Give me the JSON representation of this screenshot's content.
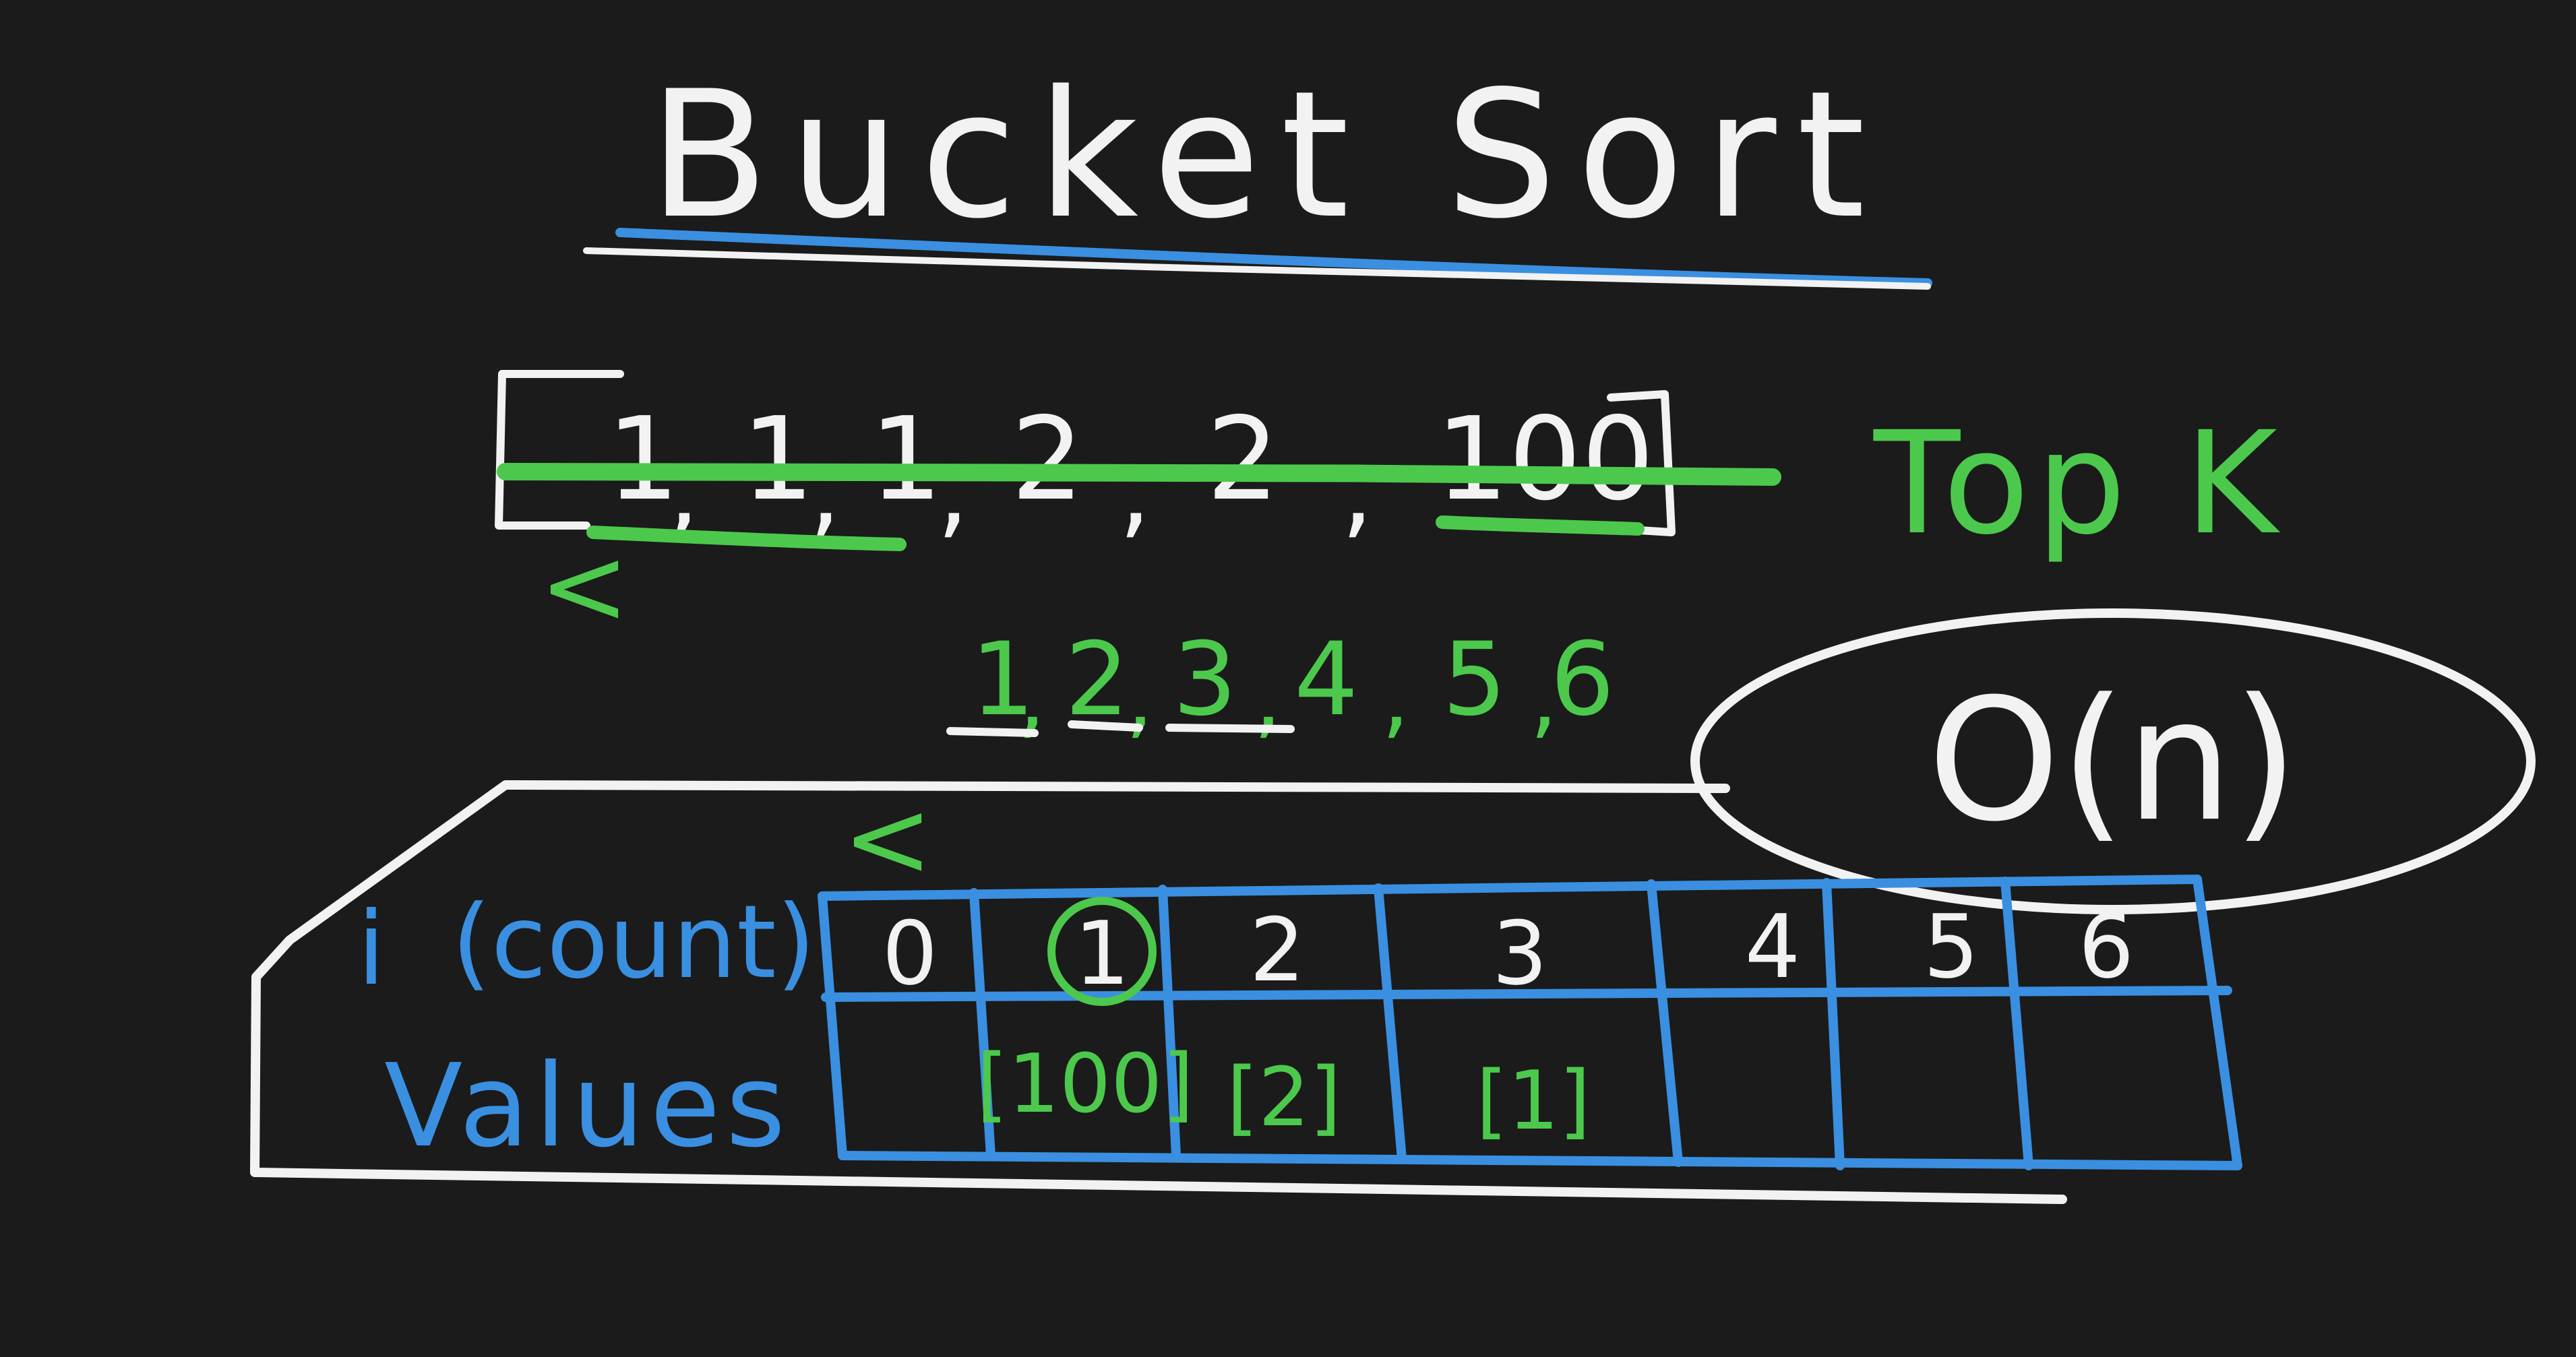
{
  "title": "Bucket Sort",
  "array": {
    "open_bracket": "[",
    "items": [
      "1",
      ",",
      "1",
      ",",
      "1",
      ",",
      "2",
      ",",
      "2",
      ",",
      "100"
    ],
    "close_bracket": "]",
    "less_than": "<"
  },
  "side_label": "Top K",
  "count_sequence": [
    "1",
    ",",
    "2",
    ",",
    "3",
    ",",
    "4",
    ",",
    "5",
    ",",
    "6"
  ],
  "complexity": "O(n)",
  "table": {
    "arrow": "<",
    "index_label": "i",
    "count_label": "(count)",
    "values_label": "Values",
    "indices": [
      "0",
      "1",
      "2",
      "3",
      "4",
      "5",
      "6"
    ],
    "values": [
      "",
      "[100]",
      "[2]",
      "[1]",
      "",
      "",
      ""
    ]
  },
  "colors": {
    "background": "#1b1b1b",
    "white_ink": "#f2f2f2",
    "green_ink": "#4cc94c",
    "blue_ink": "#3a8fe0"
  }
}
